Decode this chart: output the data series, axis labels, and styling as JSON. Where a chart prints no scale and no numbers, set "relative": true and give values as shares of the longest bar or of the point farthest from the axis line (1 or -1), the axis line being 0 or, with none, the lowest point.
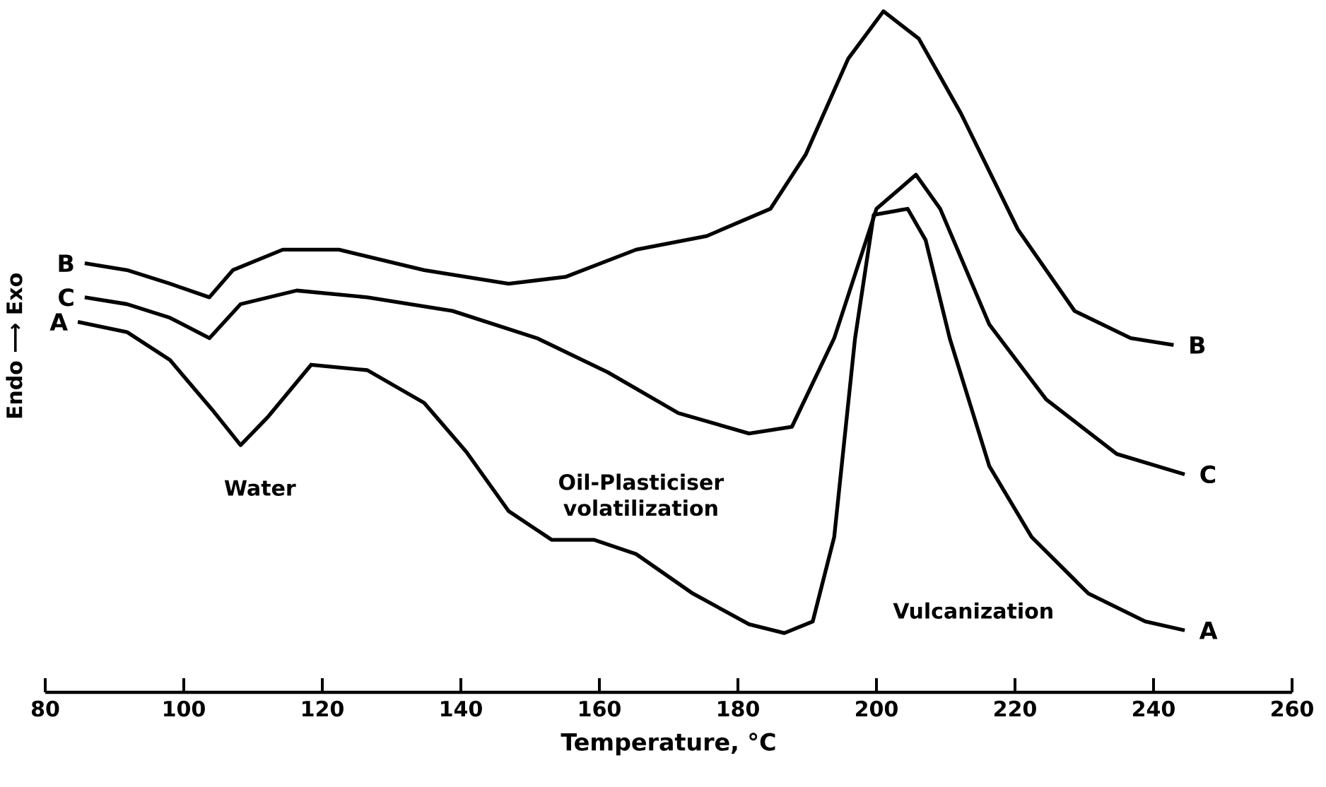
{
  "chart_data": {
    "type": "line",
    "relative": true,
    "xlabel": "Temperature, °C",
    "ylabel": "Endo ⟶ Exo",
    "xlim": [
      80,
      260
    ],
    "xticks": [
      80,
      100,
      120,
      140,
      160,
      180,
      200,
      220,
      240,
      260
    ],
    "grid": false,
    "legend": false,
    "annotations": [
      "Water",
      "Oil-Plasticiser volatilization",
      "Vulcanization"
    ],
    "series": [
      {
        "name": "B",
        "color": "#000000",
        "x": [
          85.7,
          91.8,
          98,
          103.7,
          107.1,
          114.3,
          122.4,
          134.7,
          146.9,
          155.1,
          165.3,
          175.5,
          184.7,
          189.8,
          195.9,
          201,
          206.1,
          212.2,
          220.4,
          228.6,
          236.7,
          242.9
        ],
        "values": [
          0.63,
          0.62,
          0.6,
          0.58,
          0.62,
          0.65,
          0.65,
          0.62,
          0.6,
          0.61,
          0.65,
          0.67,
          0.71,
          0.79,
          0.93,
          1.0,
          0.96,
          0.85,
          0.68,
          0.56,
          0.52,
          0.51
        ]
      },
      {
        "name": "C",
        "color": "#000000",
        "x": [
          85.7,
          91.8,
          98,
          103.7,
          108.2,
          116.3,
          126.5,
          138.8,
          151,
          161.2,
          171.4,
          181.6,
          187.8,
          193.9,
          200,
          205.7,
          209.2,
          216.3,
          224.5,
          234.7,
          244.5
        ],
        "values": [
          0.58,
          0.57,
          0.55,
          0.52,
          0.57,
          0.59,
          0.58,
          0.56,
          0.52,
          0.47,
          0.41,
          0.38,
          0.39,
          0.52,
          0.71,
          0.76,
          0.71,
          0.54,
          0.43,
          0.35,
          0.32
        ]
      },
      {
        "name": "A",
        "color": "#000000",
        "x": [
          84.7,
          91.8,
          98,
          104.1,
          108.2,
          112.2,
          118.4,
          126.5,
          134.7,
          140.8,
          146.9,
          153.1,
          159.2,
          165.3,
          173.5,
          181.6,
          186.7,
          190.8,
          193.9,
          196.9,
          199.6,
          204.5,
          207.1,
          210.6,
          216.3,
          222.4,
          230.6,
          238.8,
          244.5
        ],
        "values": [
          0.544,
          0.529,
          0.488,
          0.415,
          0.363,
          0.405,
          0.481,
          0.473,
          0.425,
          0.353,
          0.266,
          0.224,
          0.224,
          0.203,
          0.145,
          0.1,
          0.087,
          0.104,
          0.228,
          0.519,
          0.701,
          0.71,
          0.664,
          0.519,
          0.332,
          0.228,
          0.145,
          0.104,
          0.091
        ]
      }
    ]
  }
}
